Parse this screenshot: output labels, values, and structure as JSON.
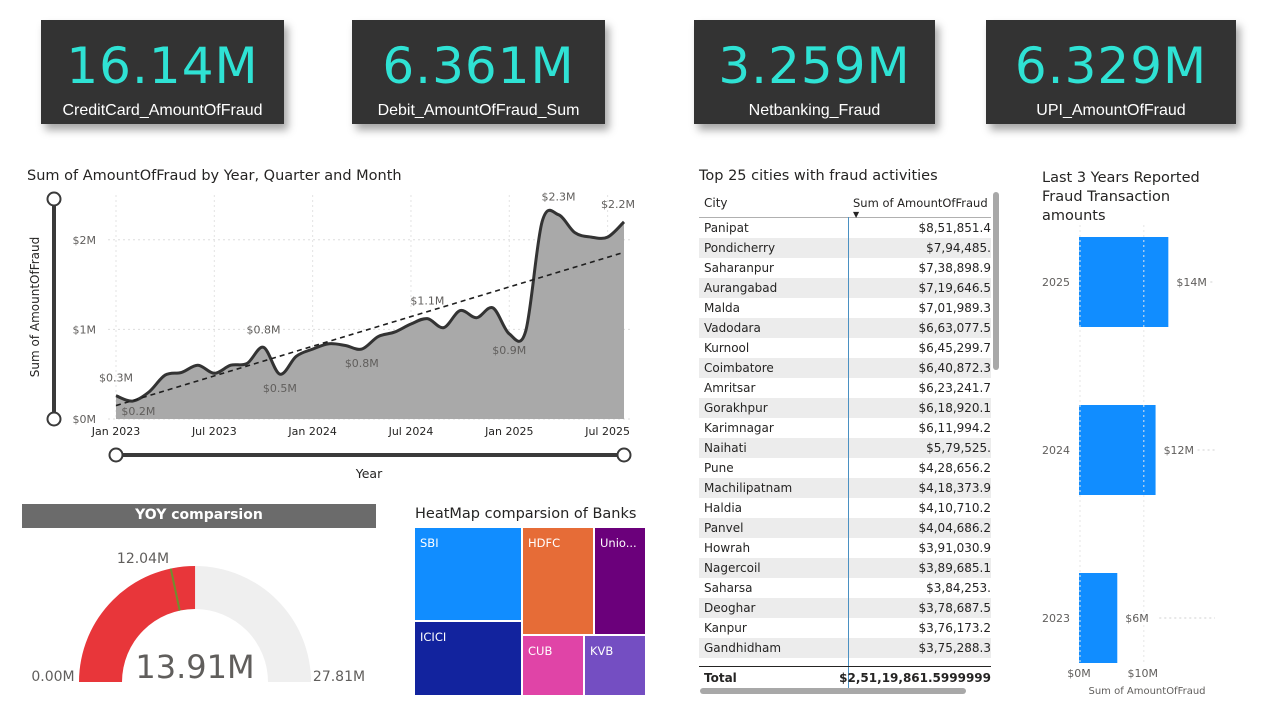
{
  "kpis": [
    {
      "value": "16.14M",
      "label": "CreditCard_AmountOfFraud"
    },
    {
      "value": "6.361M",
      "label": "Debit_AmountOfFraud_Sum"
    },
    {
      "value": "3.259M",
      "label": "Netbanking_Fraud"
    },
    {
      "value": "6.329M",
      "label": "UPI_AmountOfFraud"
    }
  ],
  "colors": {
    "kpi_bg": "#333333",
    "kpi_value": "#2fe2d4",
    "bar": "#118dff",
    "gauge_fill": "#e8363a",
    "gauge_bg": "#efefef"
  },
  "chart_data": [
    {
      "type": "area",
      "title": "Sum of AmountOfFraud by Year, Quarter and Month",
      "xlabel": "Year",
      "ylabel": "Sum of AmountOfFraud",
      "x_ticks": [
        "Jan 2023",
        "Jul 2023",
        "Jan 2024",
        "Jul 2024",
        "Jan 2025",
        "Jul 2025"
      ],
      "y_ticks": [
        "$0M",
        "$1M",
        "$2M"
      ],
      "ylim": [
        0,
        2.5
      ],
      "x": [
        "2023-01",
        "2023-02",
        "2023-03",
        "2023-04",
        "2023-05",
        "2023-06",
        "2023-07",
        "2023-08",
        "2023-09",
        "2023-10",
        "2023-11",
        "2023-12",
        "2024-01",
        "2024-02",
        "2024-03",
        "2024-04",
        "2024-05",
        "2024-06",
        "2024-07",
        "2024-08",
        "2024-09",
        "2024-10",
        "2024-11",
        "2024-12",
        "2025-01",
        "2025-02",
        "2025-03",
        "2025-04",
        "2025-05",
        "2025-06",
        "2025-07",
        "2025-08"
      ],
      "values": [
        0.26,
        0.2,
        0.3,
        0.49,
        0.52,
        0.6,
        0.51,
        0.6,
        0.62,
        0.8,
        0.5,
        0.7,
        0.78,
        0.84,
        0.82,
        0.78,
        0.92,
        0.97,
        1.06,
        1.12,
        1.02,
        1.21,
        1.13,
        1.24,
        0.95,
        0.98,
        2.2,
        2.28,
        2.08,
        2.03,
        2.03,
        2.2
      ],
      "trend_line": [
        0.15,
        1.86
      ],
      "data_labels": [
        {
          "x": "2023-01",
          "text": "$0.3M"
        },
        {
          "x": "2023-02",
          "text": "$0.2M"
        },
        {
          "x": "2023-10",
          "text": "$0.8M"
        },
        {
          "x": "2023-11",
          "text": "$0.5M"
        },
        {
          "x": "2024-04",
          "text": "$0.8M"
        },
        {
          "x": "2024-08",
          "text": "$1.1M"
        },
        {
          "x": "2025-01",
          "text": "$0.9M"
        },
        {
          "x": "2025-04",
          "text": "$2.3M"
        },
        {
          "x": "2025-08",
          "text": "$2.2M"
        }
      ],
      "grid": true
    },
    {
      "type": "bar",
      "title": "Last 3 Years Reported Fraud Transaction amounts",
      "title_lines": [
        "Last 3 Years Reported",
        "Fraud Transaction",
        "amounts"
      ],
      "orientation": "horizontal",
      "categories": [
        "2025",
        "2024",
        "2023"
      ],
      "values": [
        14,
        12,
        6
      ],
      "labels": [
        "$14M",
        "$12M",
        "$6M"
      ],
      "x_ticks": [
        "$0M",
        "$10M"
      ],
      "xlabel": "Sum of AmountOfFraud",
      "xlim": [
        0,
        21
      ]
    },
    {
      "type": "table",
      "title": "Top 25 cities with fraud activities",
      "columns": [
        "City",
        "Sum of AmountOfFraud"
      ],
      "rows": [
        [
          "Panipat",
          "$8,51,851.4"
        ],
        [
          "Pondicherry",
          "$7,94,485."
        ],
        [
          "Saharanpur",
          "$7,38,898.9"
        ],
        [
          "Aurangabad",
          "$7,19,646.5"
        ],
        [
          "Malda",
          "$7,01,989.3"
        ],
        [
          "Vadodara",
          "$6,63,077.5"
        ],
        [
          "Kurnool",
          "$6,45,299.7"
        ],
        [
          "Coimbatore",
          "$6,40,872.3"
        ],
        [
          "Amritsar",
          "$6,23,241.7"
        ],
        [
          "Gorakhpur",
          "$6,18,920.1"
        ],
        [
          "Karimnagar",
          "$6,11,994.2"
        ],
        [
          "Naihati",
          "$5,79,525."
        ],
        [
          "Pune",
          "$4,28,656.2"
        ],
        [
          "Machilipatnam",
          "$4,18,373.9"
        ],
        [
          "Haldia",
          "$4,10,710.2"
        ],
        [
          "Panvel",
          "$4,04,686.2"
        ],
        [
          "Howrah",
          "$3,91,030.9"
        ],
        [
          "Nagercoil",
          "$3,89,685.1"
        ],
        [
          "Saharsa",
          "$3,84,253."
        ],
        [
          "Deoghar",
          "$3,78,687.5"
        ],
        [
          "Kanpur",
          "$3,76,173.2"
        ],
        [
          "Gandhidham",
          "$3,75,288.3"
        ]
      ],
      "total_label": "Total",
      "total_value": "$2,51,19,861.5999999"
    },
    {
      "type": "gauge",
      "title": "YOY comparsion",
      "value_text": "13.91M",
      "value": 13.91,
      "min": 0,
      "max": 27.81,
      "min_label": "0.00M",
      "max_label": "27.81M",
      "target": 12.04,
      "target_label": "12.04M"
    },
    {
      "type": "treemap",
      "title": "HeatMap comparsion of Banks",
      "tiles": [
        {
          "name": "SBI",
          "color": "#118dff"
        },
        {
          "name": "HDFC",
          "color": "#e66c37"
        },
        {
          "name": "Unio...",
          "color": "#6b007b"
        },
        {
          "name": "ICICI",
          "color": "#12239e"
        },
        {
          "name": "CUB",
          "color": "#e044a7"
        },
        {
          "name": "KVB",
          "color": "#744ec2"
        }
      ]
    }
  ]
}
